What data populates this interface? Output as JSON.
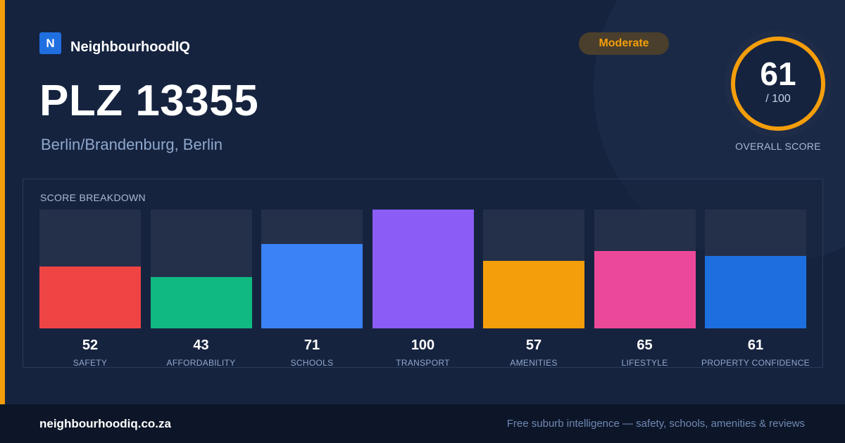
{
  "brand": {
    "logo_letter": "N",
    "name": "NeighbourhoodIQ",
    "logo_color": "#1f6fe0"
  },
  "header": {
    "title": "PLZ 13355",
    "location": "Berlin/Brandenburg, Berlin",
    "status_badge": "Moderate"
  },
  "overall": {
    "score": "61",
    "max": "/ 100",
    "label": "OVERALL SCORE",
    "fraction": 0.61,
    "ring_color": "#f59e0b"
  },
  "breakdown": {
    "title": "SCORE BREAKDOWN",
    "items": [
      {
        "label": "SAFETY",
        "value": "52",
        "score": 52,
        "color": "#ef4444"
      },
      {
        "label": "AFFORDABILITY",
        "value": "43",
        "score": 43,
        "color": "#10b981"
      },
      {
        "label": "SCHOOLS",
        "value": "71",
        "score": 71,
        "color": "#3b82f6"
      },
      {
        "label": "TRANSPORT",
        "value": "100",
        "score": 100,
        "color": "#8b5cf6"
      },
      {
        "label": "AMENITIES",
        "value": "57",
        "score": 57,
        "color": "#f59e0b"
      },
      {
        "label": "LIFESTYLE",
        "value": "65",
        "score": 65,
        "color": "#ec4899"
      },
      {
        "label": "PROPERTY CONFIDENCE",
        "value": "61",
        "score": 61,
        "color": "#1d6fe0"
      }
    ]
  },
  "footer": {
    "domain": "neighbourhoodiq.co.za",
    "tagline": "Free suburb intelligence — safety, schools, amenities & reviews"
  },
  "colors": {
    "accent": "#f59e0b",
    "background": "#15233f",
    "footer": "#0d1628"
  }
}
